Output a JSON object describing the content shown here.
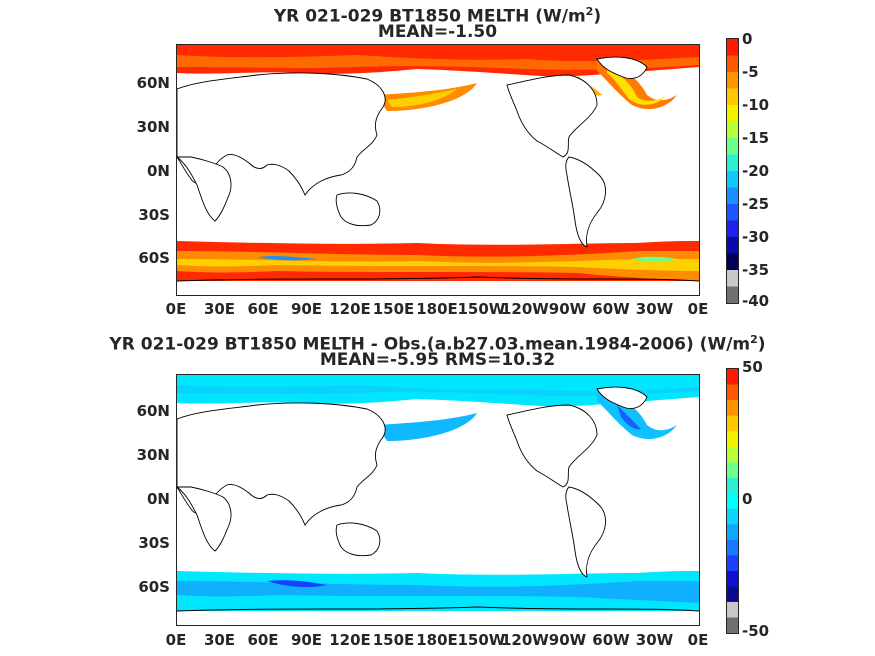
{
  "panels": [
    {
      "title_line1": "YR 021-029 BT1850  MELTH (W/m",
      "title_sup": "2",
      "title_close": ")",
      "title_line2": "MEAN=-1.50",
      "colorbar_labels": [
        "0",
        "-5",
        "-10",
        "-15",
        "-20",
        "-25",
        "-30",
        "-35",
        "-40"
      ],
      "colorbar_colors": [
        "#ff1a00",
        "#ff5a00",
        "#ff9400",
        "#ffc800",
        "#f5f000",
        "#b8ff3a",
        "#6cff8c",
        "#2cf0d4",
        "#10c8ff",
        "#1890ff",
        "#1a58ff",
        "#1c22f0",
        "#0a0aa8",
        "#00005a",
        "#c8c8c8",
        "#707070"
      ]
    },
    {
      "title_line1": "YR 021-029 BT1850 MELTH - Obs.(a.b27.03.mean.1984-2006) (W/m",
      "title_sup": "2",
      "title_close": ")",
      "title_line2": "MEAN=-5.95 RMS=10.32",
      "colorbar_labels": [
        "50",
        "0",
        "-50"
      ],
      "colorbar_colors": [
        "#ff1a00",
        "#ff5a00",
        "#ff9400",
        "#ffc800",
        "#f5f000",
        "#b8ff3a",
        "#6cff8c",
        "#2cf0d4",
        "#00ffff",
        "#10d4ff",
        "#10a8ff",
        "#1878ff",
        "#1c40ff",
        "#1010d0",
        "#0a0a90",
        "#c8c8c8",
        "#707070"
      ]
    }
  ],
  "axes": {
    "y_ticks": [
      "60N",
      "30N",
      "0N",
      "30S",
      "60S"
    ],
    "x_ticks": [
      "0E",
      "30E",
      "60E",
      "90E",
      "120E",
      "150E",
      "180E",
      "150W",
      "120W",
      "90W",
      "60W",
      "30W",
      "0E"
    ]
  }
}
